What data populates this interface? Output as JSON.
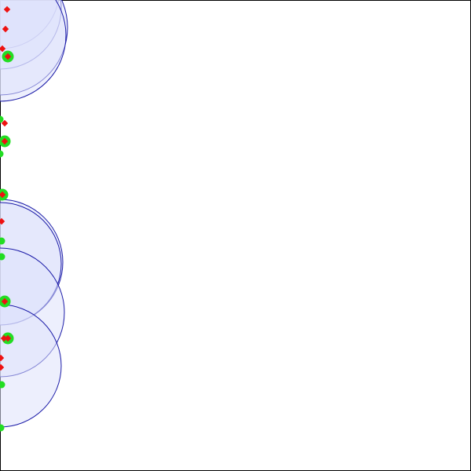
{
  "canvas": {
    "background": "#ffffff",
    "frame_color": "#000000"
  },
  "styles": {
    "circle_fill": "#dfe1fb",
    "circle_stroke": "#1c1ca8",
    "green_color": "#22dd22",
    "red_color": "#ee1111"
  }
}
